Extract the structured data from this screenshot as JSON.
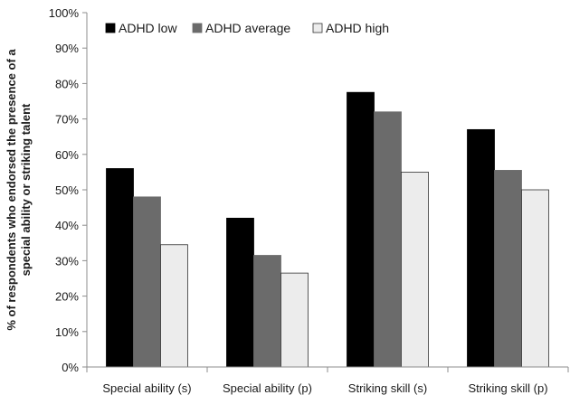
{
  "chart_data": {
    "type": "bar",
    "title": "",
    "xlabel": "",
    "ylabel": "% of respondents who endorsed the presence of a special ability or striking talent",
    "ylabel_lines": [
      "% of respondents who endorsed the presence of a",
      "special ability or striking talent"
    ],
    "categories": [
      "Special ability (s)",
      "Special ability (p)",
      "Striking skill (s)",
      "Striking skill (p)"
    ],
    "series": [
      {
        "name": "ADHD low",
        "color": "#000000",
        "values": [
          56,
          42,
          77.5,
          67
        ]
      },
      {
        "name": "ADHD average",
        "color": "#6b6b6b",
        "values": [
          48,
          31.5,
          72,
          55.5
        ]
      },
      {
        "name": "ADHD high",
        "color": "#ececec",
        "values": [
          34.5,
          26.5,
          55,
          50
        ]
      }
    ],
    "ylim": [
      0,
      100
    ],
    "yticks": [
      0,
      10,
      20,
      30,
      40,
      50,
      60,
      70,
      80,
      90,
      100
    ],
    "ytick_labels": [
      "0%",
      "10%",
      "20%",
      "30%",
      "40%",
      "50%",
      "60%",
      "70%",
      "80%",
      "90%",
      "100%"
    ],
    "grid": false,
    "legend_position": "top-left, horizontal"
  }
}
